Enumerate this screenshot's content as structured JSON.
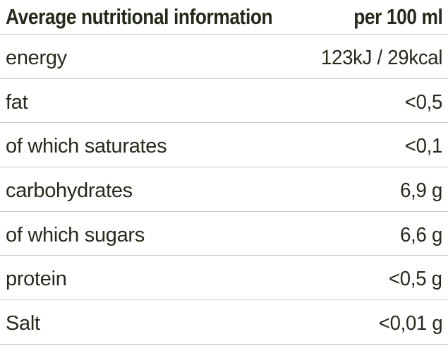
{
  "chart_data": {
    "type": "table",
    "title": "Average nutritional information",
    "columns": [
      "Average nutritional information",
      "per 100 ml"
    ],
    "rows": [
      [
        "energy",
        "123kJ / 29kcal"
      ],
      [
        "fat",
        "<0,5"
      ],
      [
        "of which saturates",
        "<0,1"
      ],
      [
        "carbohydrates",
        "6,9 g"
      ],
      [
        "of which sugars",
        "6,6 g"
      ],
      [
        "protein",
        "<0,5 g"
      ],
      [
        "Salt",
        "<0,01 g"
      ]
    ]
  },
  "table": {
    "header": {
      "label": "Average nutritional information",
      "value": "per 100 ml"
    },
    "rows": [
      {
        "label": "energy",
        "value": "123kJ / 29kcal"
      },
      {
        "label": "fat",
        "value": "<0,5"
      },
      {
        "label": "of which saturates",
        "value": "<0,1"
      },
      {
        "label": "carbohydrates",
        "value": "6,9 g"
      },
      {
        "label": "of which sugars",
        "value": "6,6 g"
      },
      {
        "label": "protein",
        "value": "<0,5 g"
      },
      {
        "label": "Salt",
        "value": "<0,01 g"
      }
    ],
    "colors": {
      "text": "#242b1b",
      "divider": "#c6c6c6",
      "background": "#ffffff"
    }
  }
}
